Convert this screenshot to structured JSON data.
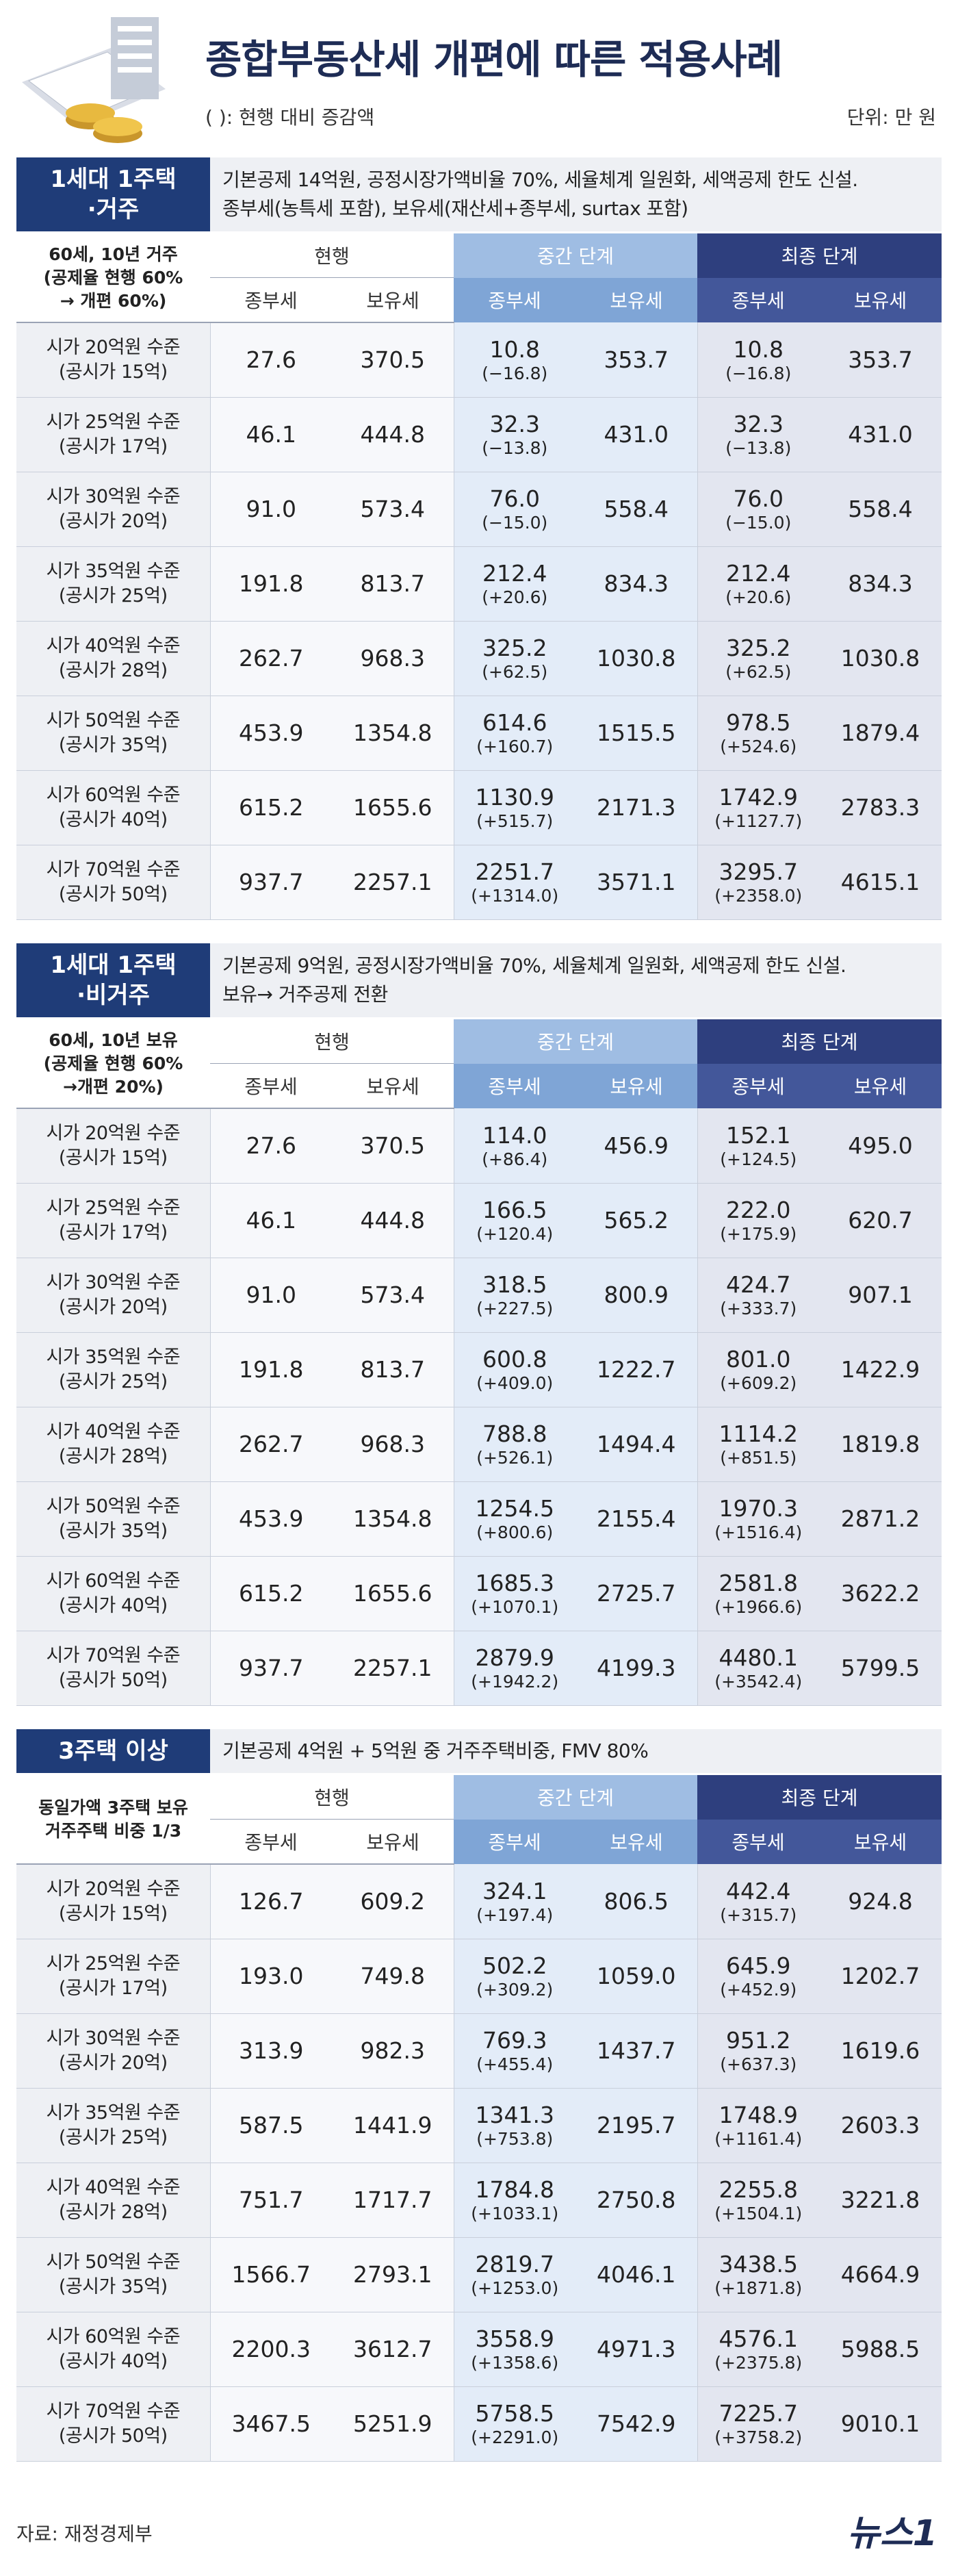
{
  "header": {
    "title": "종합부동산세 개편에 따른 적용사례",
    "note": "( ): 현행 대비 증감액",
    "unit": "단위: 만 원"
  },
  "sections": [
    {
      "label": [
        "1세대 1주택",
        "·거주"
      ],
      "description": [
        "기본공제 14억원, 공정시장가액비율 70%, 세율체계 일원화, 세액공제 한도 신설.",
        "종부세(농특세 포함), 보유세(재산세+종부세, surtax 포함)"
      ],
      "corner": [
        "60세, 10년 거주",
        "(공제율 현행 60%",
        "→ 개편 60%)"
      ],
      "groups": [
        "현행",
        "중간 단계",
        "최종 단계"
      ],
      "columns": [
        "종부세",
        "보유세",
        "종부세",
        "보유세",
        "종부세",
        "보유세"
      ],
      "rows": [
        {
          "label": "시가 20억원 수준",
          "sublabel": "(공시가 15억)",
          "cells": [
            "27.6",
            "370.5",
            {
              "value": "10.8",
              "change": "(−16.8)"
            },
            "353.7",
            {
              "value": "10.8",
              "change": "(−16.8)"
            },
            "353.7"
          ]
        },
        {
          "label": "시가 25억원 수준",
          "sublabel": "(공시가 17억)",
          "cells": [
            "46.1",
            "444.8",
            {
              "value": "32.3",
              "change": "(−13.8)"
            },
            "431.0",
            {
              "value": "32.3",
              "change": "(−13.8)"
            },
            "431.0"
          ]
        },
        {
          "label": "시가 30억원 수준",
          "sublabel": "(공시가 20억)",
          "cells": [
            "91.0",
            "573.4",
            {
              "value": "76.0",
              "change": "(−15.0)"
            },
            "558.4",
            {
              "value": "76.0",
              "change": "(−15.0)"
            },
            "558.4"
          ]
        },
        {
          "label": "시가 35억원 수준",
          "sublabel": "(공시가 25억)",
          "cells": [
            "191.8",
            "813.7",
            {
              "value": "212.4",
              "change": "(+20.6)"
            },
            "834.3",
            {
              "value": "212.4",
              "change": "(+20.6)"
            },
            "834.3"
          ]
        },
        {
          "label": "시가 40억원 수준",
          "sublabel": "(공시가 28억)",
          "cells": [
            "262.7",
            "968.3",
            {
              "value": "325.2",
              "change": "(+62.5)"
            },
            "1030.8",
            {
              "value": "325.2",
              "change": "(+62.5)"
            },
            "1030.8"
          ]
        },
        {
          "label": "시가 50억원 수준",
          "sublabel": "(공시가 35억)",
          "cells": [
            "453.9",
            "1354.8",
            {
              "value": "614.6",
              "change": "(+160.7)"
            },
            "1515.5",
            {
              "value": "978.5",
              "change": "(+524.6)"
            },
            "1879.4"
          ]
        },
        {
          "label": "시가 60억원 수준",
          "sublabel": "(공시가 40억)",
          "cells": [
            "615.2",
            "1655.6",
            {
              "value": "1130.9",
              "change": "(+515.7)"
            },
            "2171.3",
            {
              "value": "1742.9",
              "change": "(+1127.7)"
            },
            "2783.3"
          ]
        },
        {
          "label": "시가 70억원 수준",
          "sublabel": "(공시가 50억)",
          "cells": [
            "937.7",
            "2257.1",
            {
              "value": "2251.7",
              "change": "(+1314.0)"
            },
            "3571.1",
            {
              "value": "3295.7",
              "change": "(+2358.0)"
            },
            "4615.1"
          ]
        }
      ]
    },
    {
      "label": [
        "1세대 1주택",
        "·비거주"
      ],
      "description": [
        "기본공제 9억원, 공정시장가액비율 70%, 세율체계 일원화, 세액공제 한도 신설.",
        "보유→ 거주공제 전환"
      ],
      "corner": [
        "60세, 10년 보유",
        "(공제율 현행 60%",
        "→개편 20%)"
      ],
      "groups": [
        "현행",
        "중간 단계",
        "최종 단계"
      ],
      "columns": [
        "종부세",
        "보유세",
        "종부세",
        "보유세",
        "종부세",
        "보유세"
      ],
      "rows": [
        {
          "label": "시가 20억원 수준",
          "sublabel": "(공시가 15억)",
          "cells": [
            "27.6",
            "370.5",
            {
              "value": "114.0",
              "change": "(+86.4)"
            },
            "456.9",
            {
              "value": "152.1",
              "change": "(+124.5)"
            },
            "495.0"
          ]
        },
        {
          "label": "시가 25억원 수준",
          "sublabel": "(공시가 17억)",
          "cells": [
            "46.1",
            "444.8",
            {
              "value": "166.5",
              "change": "(+120.4)"
            },
            "565.2",
            {
              "value": "222.0",
              "change": "(+175.9)"
            },
            "620.7"
          ]
        },
        {
          "label": "시가 30억원 수준",
          "sublabel": "(공시가 20억)",
          "cells": [
            "91.0",
            "573.4",
            {
              "value": "318.5",
              "change": "(+227.5)"
            },
            "800.9",
            {
              "value": "424.7",
              "change": "(+333.7)"
            },
            "907.1"
          ]
        },
        {
          "label": "시가 35억원 수준",
          "sublabel": "(공시가 25억)",
          "cells": [
            "191.8",
            "813.7",
            {
              "value": "600.8",
              "change": "(+409.0)"
            },
            "1222.7",
            {
              "value": "801.0",
              "change": "(+609.2)"
            },
            "1422.9"
          ]
        },
        {
          "label": "시가 40억원 수준",
          "sublabel": "(공시가 28억)",
          "cells": [
            "262.7",
            "968.3",
            {
              "value": "788.8",
              "change": "(+526.1)"
            },
            "1494.4",
            {
              "value": "1114.2",
              "change": "(+851.5)"
            },
            "1819.8"
          ]
        },
        {
          "label": "시가 50억원 수준",
          "sublabel": "(공시가 35억)",
          "cells": [
            "453.9",
            "1354.8",
            {
              "value": "1254.5",
              "change": "(+800.6)"
            },
            "2155.4",
            {
              "value": "1970.3",
              "change": "(+1516.4)"
            },
            "2871.2"
          ]
        },
        {
          "label": "시가 60억원 수준",
          "sublabel": "(공시가 40억)",
          "cells": [
            "615.2",
            "1655.6",
            {
              "value": "1685.3",
              "change": "(+1070.1)"
            },
            "2725.7",
            {
              "value": "2581.8",
              "change": "(+1966.6)"
            },
            "3622.2"
          ]
        },
        {
          "label": "시가 70억원 수준",
          "sublabel": "(공시가 50억)",
          "cells": [
            "937.7",
            "2257.1",
            {
              "value": "2879.9",
              "change": "(+1942.2)"
            },
            "4199.3",
            {
              "value": "4480.1",
              "change": "(+3542.4)"
            },
            "5799.5"
          ]
        }
      ]
    },
    {
      "label": [
        "3주택 이상"
      ],
      "description": [
        "기본공제 4억원 + 5억원 중 거주주택비중, FMV 80%"
      ],
      "corner": [
        "동일가액 3주택 보유",
        "거주주택 비중 1/3"
      ],
      "groups": [
        "현행",
        "중간 단계",
        "최종 단계"
      ],
      "columns": [
        "종부세",
        "보유세",
        "종부세",
        "보유세",
        "종부세",
        "보유세"
      ],
      "rows": [
        {
          "label": "시가 20억원 수준",
          "sublabel": "(공시가 15억)",
          "cells": [
            "126.7",
            "609.2",
            {
              "value": "324.1",
              "change": "(+197.4)"
            },
            "806.5",
            {
              "value": "442.4",
              "change": "(+315.7)"
            },
            "924.8"
          ]
        },
        {
          "label": "시가 25억원 수준",
          "sublabel": "(공시가 17억)",
          "cells": [
            "193.0",
            "749.8",
            {
              "value": "502.2",
              "change": "(+309.2)"
            },
            "1059.0",
            {
              "value": "645.9",
              "change": "(+452.9)"
            },
            "1202.7"
          ]
        },
        {
          "label": "시가 30억원 수준",
          "sublabel": "(공시가 20억)",
          "cells": [
            "313.9",
            "982.3",
            {
              "value": "769.3",
              "change": "(+455.4)"
            },
            "1437.7",
            {
              "value": "951.2",
              "change": "(+637.3)"
            },
            "1619.6"
          ]
        },
        {
          "label": "시가 35억원 수준",
          "sublabel": "(공시가 25억)",
          "cells": [
            "587.5",
            "1441.9",
            {
              "value": "1341.3",
              "change": "(+753.8)"
            },
            "2195.7",
            {
              "value": "1748.9",
              "change": "(+1161.4)"
            },
            "2603.3"
          ]
        },
        {
          "label": "시가 40억원 수준",
          "sublabel": "(공시가 28억)",
          "cells": [
            "751.7",
            "1717.7",
            {
              "value": "1784.8",
              "change": "(+1033.1)"
            },
            "2750.8",
            {
              "value": "2255.8",
              "change": "(+1504.1)"
            },
            "3221.8"
          ]
        },
        {
          "label": "시가 50억원 수준",
          "sublabel": "(공시가 35억)",
          "cells": [
            "1566.7",
            "2793.1",
            {
              "value": "2819.7",
              "change": "(+1253.0)"
            },
            "4046.1",
            {
              "value": "3438.5",
              "change": "(+1871.8)"
            },
            "4664.9"
          ]
        },
        {
          "label": "시가 60억원 수준",
          "sublabel": "(공시가 40억)",
          "cells": [
            "2200.3",
            "3612.7",
            {
              "value": "3558.9",
              "change": "(+1358.6)"
            },
            "4971.3",
            {
              "value": "4576.1",
              "change": "(+2375.8)"
            },
            "5988.5"
          ]
        },
        {
          "label": "시가 70억원 수준",
          "sublabel": "(공시가 50억)",
          "cells": [
            "3467.5",
            "5251.9",
            {
              "value": "5758.5",
              "change": "(+2291.0)"
            },
            "7542.9",
            {
              "value": "7225.7",
              "change": "(+3758.2)"
            },
            "9010.1"
          ]
        }
      ]
    }
  ],
  "footer": {
    "source": "자료: 재정경제부",
    "logo": "뉴스1"
  }
}
